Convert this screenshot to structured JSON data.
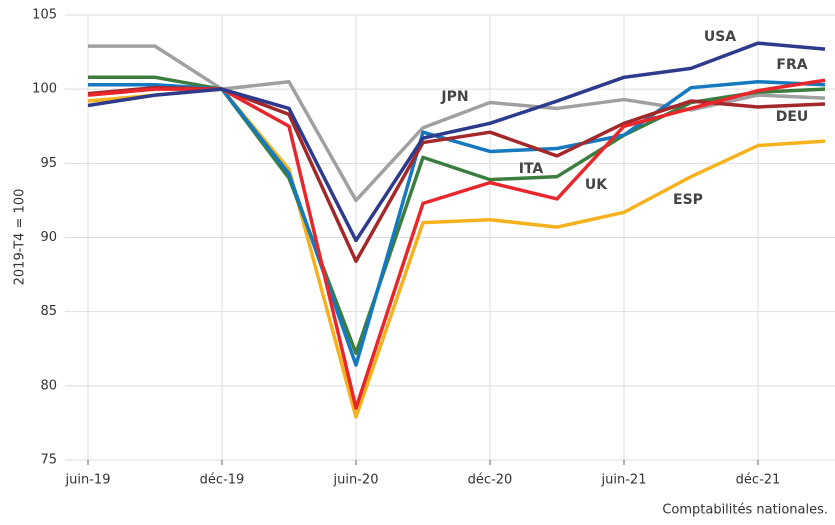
{
  "chart_data": {
    "type": "line",
    "y_label": "2019-T4 = 100",
    "source": "Comptabilités nationales.",
    "categories": [
      "juin-19",
      null,
      "déc-19",
      null,
      "juin-20",
      null,
      "déc-20",
      null,
      "juin-21",
      null,
      "déc-21",
      null
    ],
    "ylim": [
      75,
      105
    ],
    "yticks": [
      75,
      80,
      85,
      90,
      95,
      100,
      105
    ],
    "grid": true,
    "series": [
      {
        "name": "JPN",
        "color": "#a0a0a0",
        "values": [
          102.9,
          102.9,
          100,
          100.5,
          92.5,
          97.4,
          99.1,
          98.7,
          99.3,
          98.6,
          99.6,
          99.4
        ]
      },
      {
        "name": "ESP",
        "color": "#f5b21c",
        "values": [
          99.2,
          99.6,
          100,
          94.6,
          77.9,
          91.0,
          91.2,
          90.7,
          91.7,
          94.1,
          96.2,
          96.5
        ]
      },
      {
        "name": "UK",
        "color": "#3a7d3e",
        "values": [
          100.8,
          100.8,
          100,
          94.0,
          82.2,
          95.4,
          93.9,
          94.1,
          96.9,
          99.1,
          99.8,
          100.0
        ]
      },
      {
        "name": "ITA",
        "color": "#1479bf",
        "values": [
          100.3,
          100.3,
          100,
          94.3,
          81.4,
          97.1,
          95.8,
          96.0,
          96.9,
          100.1,
          100.5,
          100.3
        ]
      },
      {
        "name": "DEU",
        "color": "#a3282a",
        "values": [
          99.7,
          100.1,
          100,
          98.3,
          88.4,
          96.4,
          97.1,
          95.5,
          97.7,
          99.2,
          98.8,
          99.0
        ]
      },
      {
        "name": "FRA",
        "color": "#e8262b",
        "values": [
          99.6,
          100,
          100,
          97.5,
          78.5,
          92.3,
          93.7,
          92.6,
          97.5,
          98.7,
          99.9,
          100.6
        ]
      },
      {
        "name": "USA",
        "color": "#2e3a8c",
        "values": [
          98.9,
          99.6,
          100,
          98.7,
          89.8,
          96.7,
          97.7,
          99.2,
          100.8,
          101.4,
          103.1,
          102.7
        ]
      }
    ]
  }
}
